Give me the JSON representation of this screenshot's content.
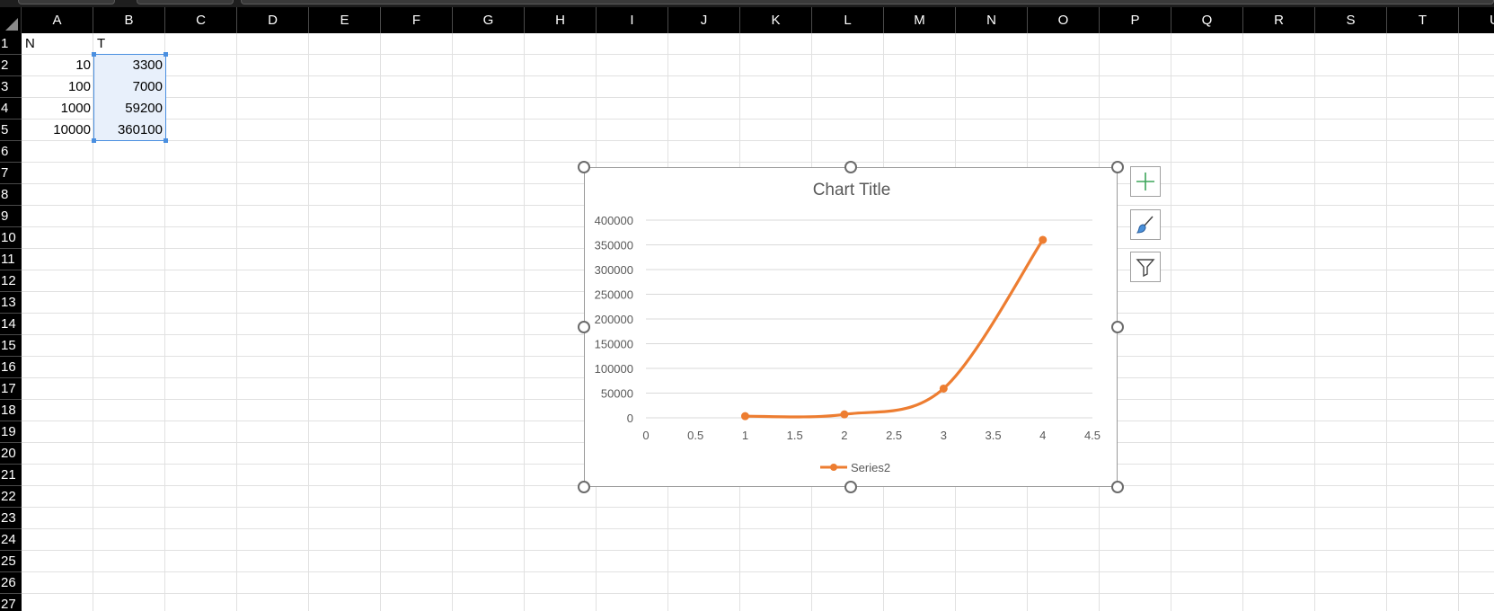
{
  "columns": [
    "A",
    "B",
    "C",
    "D",
    "E",
    "F",
    "G",
    "H",
    "I",
    "J",
    "K",
    "L",
    "M",
    "N",
    "O",
    "P",
    "Q",
    "R",
    "S",
    "T",
    "U"
  ],
  "rows": [
    "1",
    "2",
    "3",
    "4",
    "5",
    "6",
    "7",
    "8",
    "9",
    "10",
    "11",
    "12",
    "13",
    "14",
    "15",
    "16",
    "17",
    "18",
    "19",
    "20",
    "21",
    "22",
    "23",
    "24",
    "25",
    "26",
    "27"
  ],
  "cells": {
    "a1": "N",
    "b1": "T",
    "a2": "10",
    "b2": "3300",
    "a3": "100",
    "b3": "7000",
    "a4": "1000",
    "b4": "59200",
    "a5": "10000",
    "b5": "360100"
  },
  "chart_buttons": {
    "add": "chart-elements-plus-icon",
    "style": "chart-styles-brush-icon",
    "filter": "chart-filters-funnel-icon"
  },
  "colors": {
    "series": "#ED7D31",
    "selection_border": "#4A8FE0",
    "plus_icon": "#3DA55A"
  },
  "chart_data": {
    "type": "scatter",
    "title": "Chart Title",
    "smooth_lines": true,
    "markers": true,
    "series": [
      {
        "name": "Series2",
        "x": [
          1,
          2,
          3,
          4
        ],
        "y": [
          3300,
          7000,
          59200,
          360100
        ]
      }
    ],
    "xlim": [
      0,
      4.5
    ],
    "xticks": [
      "0",
      "0.5",
      "1",
      "1.5",
      "2",
      "2.5",
      "3",
      "3.5",
      "4",
      "4.5"
    ],
    "xtick_values": [
      0,
      0.5,
      1,
      1.5,
      2,
      2.5,
      3,
      3.5,
      4,
      4.5
    ],
    "ylim": [
      0,
      400000
    ],
    "yticks": [
      "0",
      "50000",
      "100000",
      "150000",
      "200000",
      "250000",
      "300000",
      "350000",
      "400000"
    ],
    "ytick_values": [
      0,
      50000,
      100000,
      150000,
      200000,
      250000,
      300000,
      350000,
      400000
    ],
    "grid": "horizontal",
    "legend": "bottom",
    "legend_label": "Series2"
  }
}
